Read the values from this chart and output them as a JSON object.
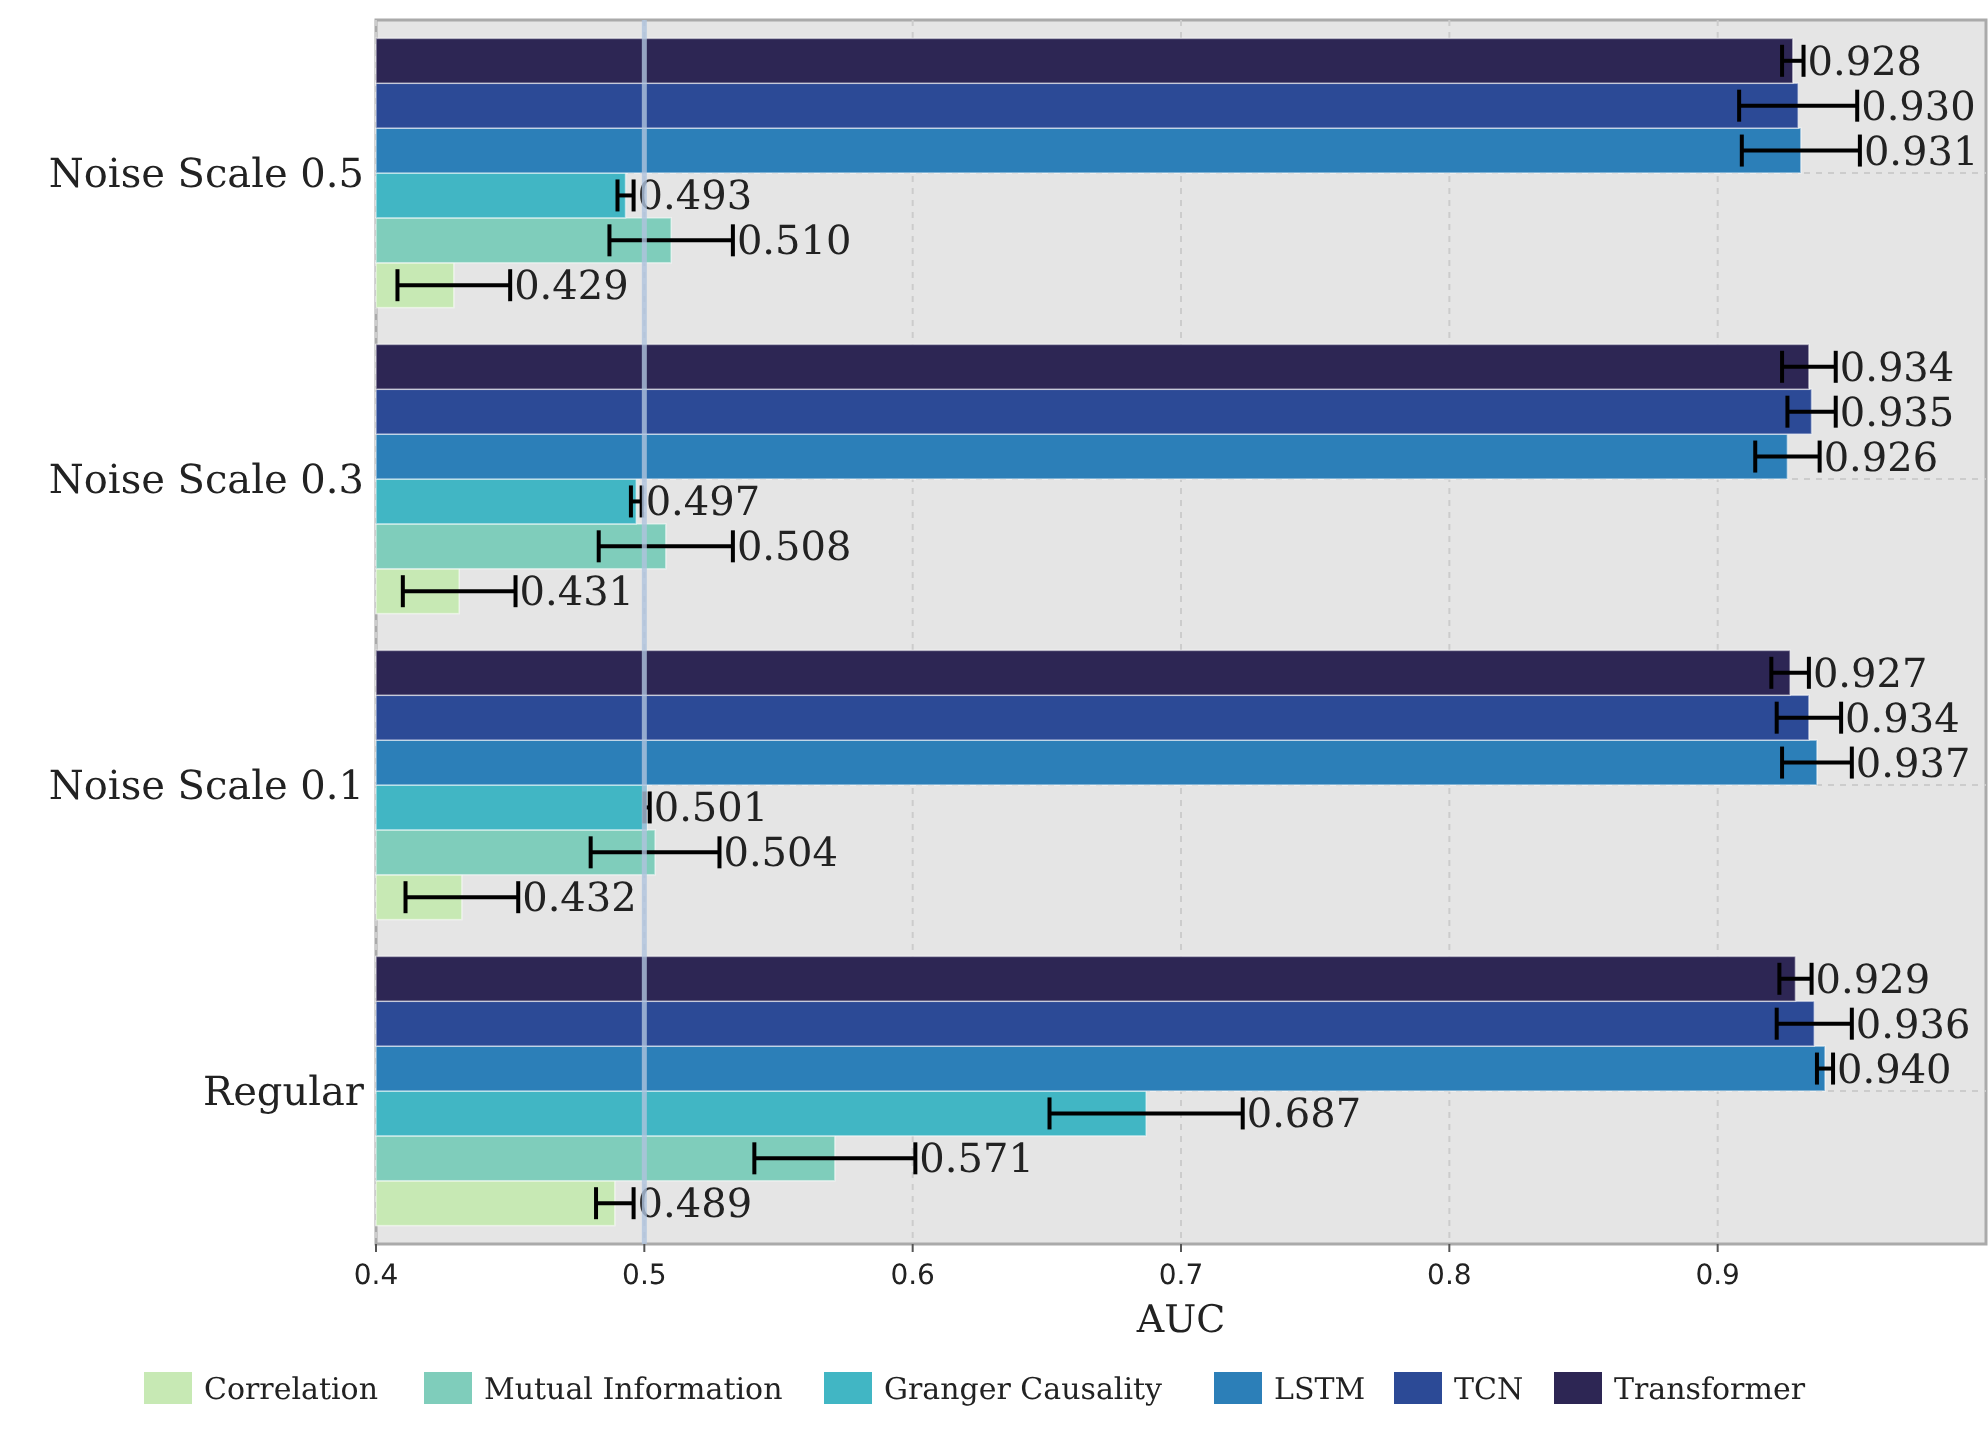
{
  "chart_data": {
    "type": "bar",
    "orientation": "horizontal",
    "xlabel": "AUC",
    "categories": [
      "Noise Scale 0.5",
      "Noise Scale 0.3",
      "Noise Scale 0.1",
      "Regular"
    ],
    "series": [
      {
        "name": "Correlation",
        "color": "#c7e9b4",
        "values": [
          0.429,
          0.431,
          0.432,
          0.489
        ],
        "errors": [
          0.021,
          0.021,
          0.021,
          0.007
        ],
        "value_labels": [
          "0.429",
          "0.431",
          "0.432",
          "0.489"
        ]
      },
      {
        "name": "Mutual Information",
        "color": "#7fcdbb",
        "values": [
          0.51,
          0.508,
          0.504,
          0.571
        ],
        "errors": [
          0.023,
          0.025,
          0.024,
          0.03
        ],
        "value_labels": [
          "0.510",
          "0.508",
          "0.504",
          "0.571"
        ]
      },
      {
        "name": "Granger Causality",
        "color": "#41b6c4",
        "values": [
          0.493,
          0.497,
          0.501,
          0.687
        ],
        "errors": [
          0.003,
          0.002,
          0.001,
          0.036
        ],
        "value_labels": [
          "0.493",
          "0.497",
          "0.501",
          "0.687"
        ]
      },
      {
        "name": "LSTM",
        "color": "#2c7fb8",
        "values": [
          0.931,
          0.926,
          0.937,
          0.94
        ],
        "errors": [
          0.022,
          0.012,
          0.013,
          0.003
        ],
        "value_labels": [
          "0.931",
          "0.926",
          "0.937",
          "0.940"
        ]
      },
      {
        "name": "TCN",
        "color": "#2c4a96",
        "values": [
          0.93,
          0.935,
          0.934,
          0.936
        ],
        "errors": [
          0.022,
          0.009,
          0.012,
          0.014
        ],
        "value_labels": [
          "0.930",
          "0.935",
          "0.934",
          "0.936"
        ]
      },
      {
        "name": "Transformer",
        "color": "#2d2654",
        "values": [
          0.928,
          0.934,
          0.927,
          0.929
        ],
        "errors": [
          0.004,
          0.01,
          0.007,
          0.006
        ],
        "value_labels": [
          "0.928",
          "0.934",
          "0.927",
          "0.929"
        ]
      }
    ],
    "xlim": [
      0.4,
      1.0
    ],
    "xticks": [
      0.4,
      0.5,
      0.6,
      0.7,
      0.8,
      0.9
    ],
    "ref_lines": [
      {
        "axis": "x",
        "value": 0.5,
        "color": "#b0c4de"
      }
    ],
    "grid": true,
    "legend": "bottom"
  }
}
